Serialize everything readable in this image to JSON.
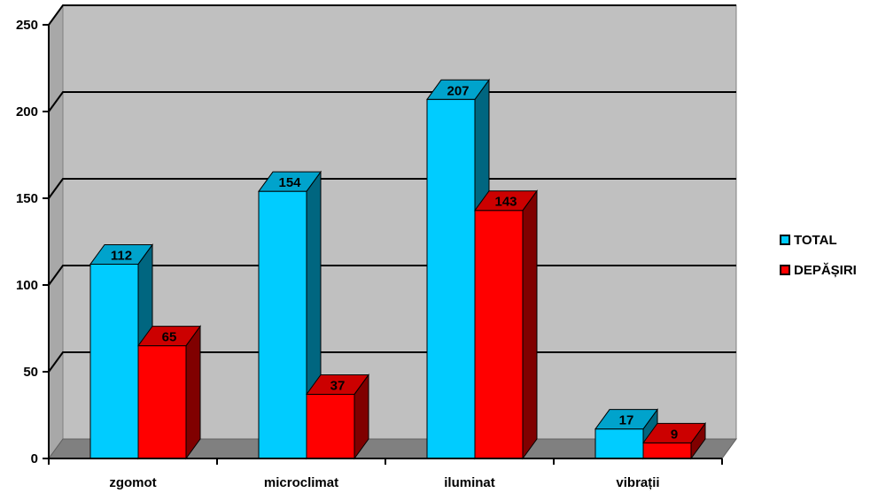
{
  "chart_data": {
    "type": "bar",
    "title": "",
    "xlabel": "",
    "ylabel": "",
    "categories": [
      "zgomot",
      "microclimat",
      "iluminat",
      "vibrații"
    ],
    "series": [
      {
        "name": "TOTAL",
        "values": [
          112,
          154,
          207,
          17
        ],
        "color": "#00ccff",
        "side_color": "#006680",
        "top_color": "#00a3cc"
      },
      {
        "name": "DEPĂȘIRI",
        "values": [
          65,
          37,
          143,
          9
        ],
        "color": "#ff0000",
        "side_color": "#800000",
        "top_color": "#cc0000"
      }
    ],
    "ylim": [
      0,
      250
    ],
    "yticks": [
      "0",
      "50",
      "100",
      "150",
      "200",
      "250"
    ],
    "grid": true,
    "legend_position": "right",
    "wall_color": "#c0c0c0",
    "floor_color": "#808080"
  }
}
